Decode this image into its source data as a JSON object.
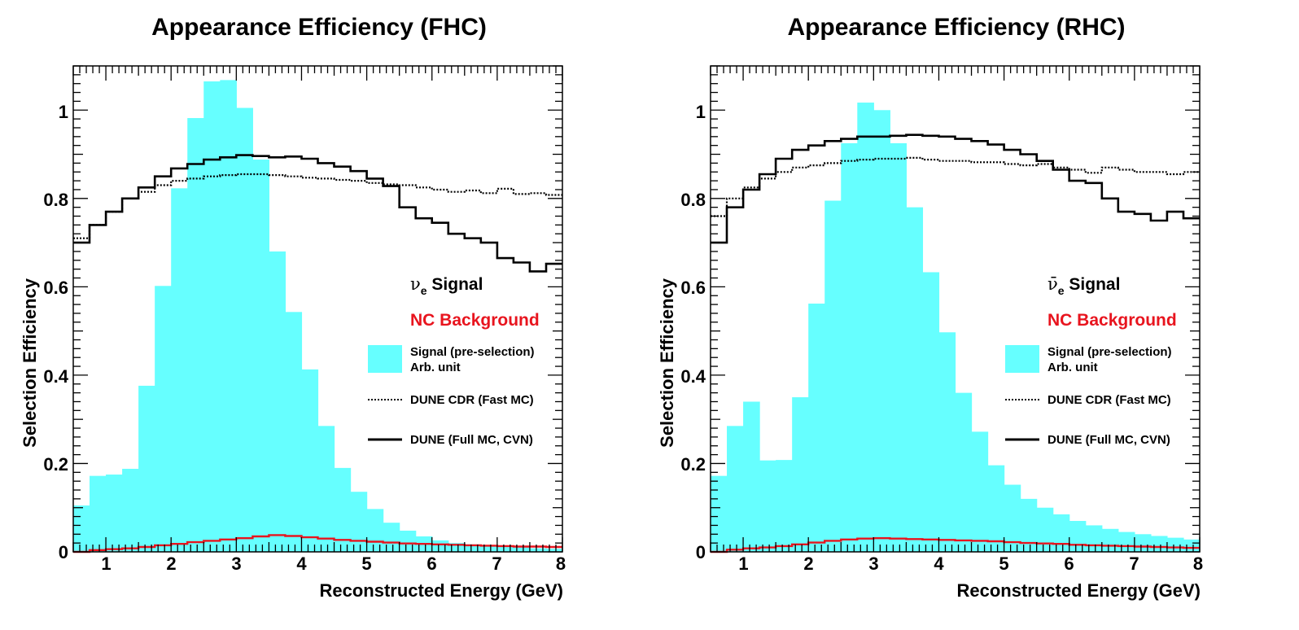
{
  "colors": {
    "signal_fill": "#66ffff",
    "nc_line": "#e8141e",
    "axis": "#000000",
    "text": "#000000"
  },
  "chart_data": [
    {
      "type": "histogram",
      "title": "Appearance Efficiency (FHC)",
      "xlabel": "Reconstructed Energy (GeV)",
      "ylabel": "Selection Efficiency",
      "xlim": [
        0.5,
        8
      ],
      "ylim": [
        0,
        1.1
      ],
      "xticks": [
        "1",
        "2",
        "3",
        "4",
        "5",
        "6",
        "7",
        "8"
      ],
      "yticks": [
        "0",
        "0.2",
        "0.4",
        "0.6",
        "0.8",
        "1"
      ],
      "legend": {
        "signal_main": "ν",
        "signal_sub": "e",
        "signal_tail": " Signal",
        "nc": "NC Background",
        "fill_line1": "Signal (pre-selection)",
        "fill_line2": "Arb. unit",
        "dotted": "DUNE CDR (Fast MC)",
        "solid": "DUNE (Full MC, CVN)"
      },
      "series": [
        {
          "name": "Signal (pre-selection)",
          "style": "fill",
          "bin_edges": [
            0.5,
            0.75,
            1.0,
            1.25,
            1.5,
            1.75,
            2.0,
            2.25,
            2.5,
            2.75,
            3.0,
            3.25,
            3.5,
            3.75,
            4.0,
            4.25,
            4.5,
            4.75,
            5.0,
            5.25,
            5.5,
            5.75,
            6.0,
            6.25,
            6.5,
            6.75,
            7.0,
            7.25,
            7.5,
            7.75,
            8.0
          ],
          "values": [
            0.105,
            0.172,
            0.175,
            0.188,
            0.376,
            0.602,
            0.823,
            0.982,
            1.065,
            1.068,
            1.005,
            0.888,
            0.68,
            0.543,
            0.413,
            0.285,
            0.19,
            0.136,
            0.097,
            0.066,
            0.048,
            0.035,
            0.026,
            0.02,
            0.017,
            0.014,
            0.012,
            0.01,
            0.008,
            0.007
          ]
        },
        {
          "name": "DUNE CDR (Fast MC)",
          "style": "dotted",
          "bin_edges": [
            0.5,
            0.75,
            1.0,
            1.25,
            1.5,
            1.75,
            2.0,
            2.25,
            2.5,
            2.75,
            3.0,
            3.25,
            3.5,
            3.75,
            4.0,
            4.25,
            4.5,
            4.75,
            5.0,
            5.25,
            5.5,
            5.75,
            6.0,
            6.25,
            6.5,
            6.75,
            7.0,
            7.25,
            7.5,
            7.75,
            8.0
          ],
          "values": [
            0.71,
            0.74,
            0.77,
            0.8,
            0.815,
            0.83,
            0.84,
            0.845,
            0.85,
            0.853,
            0.855,
            0.855,
            0.853,
            0.85,
            0.847,
            0.845,
            0.842,
            0.84,
            0.835,
            0.832,
            0.83,
            0.825,
            0.82,
            0.815,
            0.818,
            0.812,
            0.822,
            0.81,
            0.812,
            0.808
          ]
        },
        {
          "name": "DUNE (Full MC, CVN)",
          "style": "solid",
          "bin_edges": [
            0.5,
            0.75,
            1.0,
            1.25,
            1.5,
            1.75,
            2.0,
            2.25,
            2.5,
            2.75,
            3.0,
            3.25,
            3.5,
            3.75,
            4.0,
            4.25,
            4.5,
            4.75,
            5.0,
            5.25,
            5.5,
            5.75,
            6.0,
            6.25,
            6.5,
            6.75,
            7.0,
            7.25,
            7.5,
            7.75,
            8.0
          ],
          "values": [
            0.7,
            0.74,
            0.77,
            0.8,
            0.825,
            0.85,
            0.868,
            0.878,
            0.888,
            0.893,
            0.898,
            0.896,
            0.893,
            0.895,
            0.89,
            0.88,
            0.872,
            0.862,
            0.845,
            0.828,
            0.78,
            0.755,
            0.745,
            0.72,
            0.71,
            0.7,
            0.665,
            0.655,
            0.635,
            0.652
          ]
        },
        {
          "name": "NC Background",
          "style": "red-line",
          "bin_edges": [
            0.5,
            0.75,
            1.0,
            1.25,
            1.5,
            1.75,
            2.0,
            2.25,
            2.5,
            2.75,
            3.0,
            3.25,
            3.5,
            3.75,
            4.0,
            4.25,
            4.5,
            4.75,
            5.0,
            5.25,
            5.5,
            5.75,
            6.0,
            6.25,
            6.5,
            6.75,
            7.0,
            7.25,
            7.5,
            7.75,
            8.0
          ],
          "values": [
            0.0,
            0.004,
            0.006,
            0.008,
            0.011,
            0.015,
            0.018,
            0.022,
            0.025,
            0.028,
            0.031,
            0.035,
            0.038,
            0.036,
            0.033,
            0.03,
            0.027,
            0.025,
            0.023,
            0.021,
            0.019,
            0.018,
            0.017,
            0.016,
            0.015,
            0.014,
            0.013,
            0.012,
            0.012,
            0.011
          ]
        }
      ]
    },
    {
      "type": "histogram",
      "title": "Appearance Efficiency (RHC)",
      "xlabel": "Reconstructed Energy (GeV)",
      "ylabel": "Selection Efficiency",
      "xlim": [
        0.5,
        8
      ],
      "ylim": [
        0,
        1.1
      ],
      "xticks": [
        "1",
        "2",
        "3",
        "4",
        "5",
        "6",
        "7",
        "8"
      ],
      "yticks": [
        "0",
        "0.2",
        "0.4",
        "0.6",
        "0.8",
        "1"
      ],
      "legend": {
        "signal_main": "ν̄",
        "signal_sub": "e",
        "signal_tail": " Signal",
        "nc": "NC Background",
        "fill_line1": "Signal (pre-selection)",
        "fill_line2": "Arb. unit",
        "dotted": "DUNE CDR (Fast MC)",
        "solid": "DUNE (Full MC, CVN)"
      },
      "series": [
        {
          "name": "Signal (pre-selection)",
          "style": "fill",
          "bin_edges": [
            0.5,
            0.75,
            1.0,
            1.25,
            1.5,
            1.75,
            2.0,
            2.25,
            2.5,
            2.75,
            3.0,
            3.25,
            3.5,
            3.75,
            4.0,
            4.25,
            4.5,
            4.75,
            5.0,
            5.25,
            5.5,
            5.75,
            6.0,
            6.25,
            6.5,
            6.75,
            7.0,
            7.25,
            7.5,
            7.75,
            8.0
          ],
          "values": [
            0.172,
            0.285,
            0.34,
            0.207,
            0.208,
            0.35,
            0.562,
            0.795,
            0.925,
            1.017,
            1.0,
            0.925,
            0.78,
            0.633,
            0.497,
            0.36,
            0.272,
            0.196,
            0.152,
            0.12,
            0.1,
            0.085,
            0.07,
            0.06,
            0.052,
            0.045,
            0.04,
            0.036,
            0.032,
            0.028
          ]
        },
        {
          "name": "DUNE CDR (Fast MC)",
          "style": "dotted",
          "bin_edges": [
            0.5,
            0.75,
            1.0,
            1.25,
            1.5,
            1.75,
            2.0,
            2.25,
            2.5,
            2.75,
            3.0,
            3.25,
            3.5,
            3.75,
            4.0,
            4.25,
            4.5,
            4.75,
            5.0,
            5.25,
            5.5,
            5.75,
            6.0,
            6.25,
            6.5,
            6.75,
            7.0,
            7.25,
            7.5,
            7.75,
            8.0
          ],
          "values": [
            0.76,
            0.8,
            0.825,
            0.845,
            0.86,
            0.87,
            0.875,
            0.88,
            0.885,
            0.888,
            0.89,
            0.89,
            0.892,
            0.888,
            0.885,
            0.885,
            0.882,
            0.882,
            0.878,
            0.875,
            0.878,
            0.87,
            0.865,
            0.858,
            0.87,
            0.865,
            0.86,
            0.86,
            0.855,
            0.86
          ]
        },
        {
          "name": "DUNE (Full MC, CVN)",
          "style": "solid",
          "bin_edges": [
            0.5,
            0.75,
            1.0,
            1.25,
            1.5,
            1.75,
            2.0,
            2.25,
            2.5,
            2.75,
            3.0,
            3.25,
            3.5,
            3.75,
            4.0,
            4.25,
            4.5,
            4.75,
            5.0,
            5.25,
            5.5,
            5.75,
            6.0,
            6.25,
            6.5,
            6.75,
            7.0,
            7.25,
            7.5,
            7.75,
            8.0
          ],
          "values": [
            0.7,
            0.78,
            0.82,
            0.855,
            0.89,
            0.91,
            0.92,
            0.93,
            0.935,
            0.94,
            0.94,
            0.942,
            0.944,
            0.942,
            0.94,
            0.935,
            0.93,
            0.922,
            0.91,
            0.9,
            0.885,
            0.865,
            0.84,
            0.835,
            0.8,
            0.77,
            0.765,
            0.75,
            0.77,
            0.755
          ]
        },
        {
          "name": "NC Background",
          "style": "red-line",
          "bin_edges": [
            0.5,
            0.75,
            1.0,
            1.25,
            1.5,
            1.75,
            2.0,
            2.25,
            2.5,
            2.75,
            3.0,
            3.25,
            3.5,
            3.75,
            4.0,
            4.25,
            4.5,
            4.75,
            5.0,
            5.25,
            5.5,
            5.75,
            6.0,
            6.25,
            6.5,
            6.75,
            7.0,
            7.25,
            7.5,
            7.75,
            8.0
          ],
          "values": [
            0.0,
            0.005,
            0.008,
            0.01,
            0.013,
            0.017,
            0.021,
            0.025,
            0.028,
            0.03,
            0.031,
            0.03,
            0.029,
            0.028,
            0.027,
            0.026,
            0.025,
            0.024,
            0.022,
            0.02,
            0.019,
            0.018,
            0.016,
            0.015,
            0.014,
            0.013,
            0.012,
            0.011,
            0.01,
            0.009
          ]
        }
      ]
    }
  ]
}
